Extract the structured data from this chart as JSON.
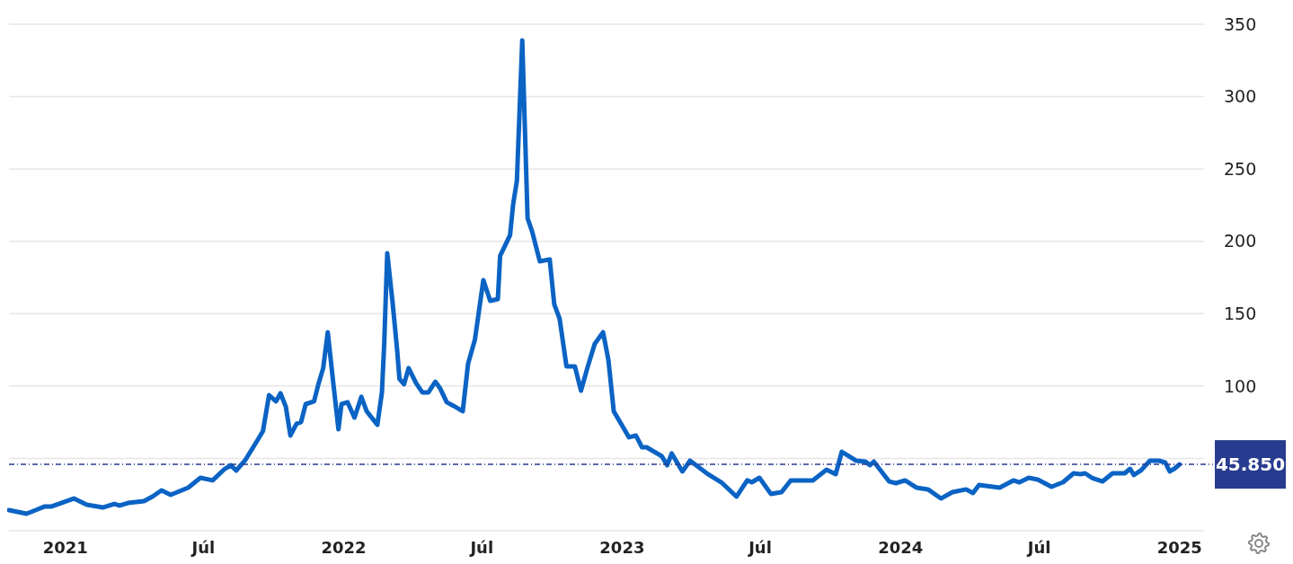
{
  "chart_data": {
    "type": "line",
    "x": [
      "2020-10-19",
      "2020-11-11",
      "2020-11-23",
      "2020-12-05",
      "2020-12-14",
      "2021-01-12",
      "2021-01-29",
      "2021-02-19",
      "2021-03-06",
      "2021-03-13",
      "2021-03-24",
      "2021-04-14",
      "2021-04-25",
      "2021-05-07",
      "2021-05-19",
      "2021-06-11",
      "2021-06-27",
      "2021-07-13",
      "2021-07-29",
      "2021-08-06",
      "2021-08-13",
      "2021-08-25",
      "2021-09-10",
      "2021-09-17",
      "2021-09-25",
      "2021-10-04",
      "2021-10-10",
      "2021-10-17",
      "2021-10-23",
      "2021-10-31",
      "2021-11-06",
      "2021-11-12",
      "2021-11-23",
      "2021-11-29",
      "2021-12-05",
      "2021-12-11",
      "2021-12-17",
      "2021-12-25",
      "2021-12-29",
      "2022-01-06",
      "2022-01-15",
      "2022-01-24",
      "2022-01-31",
      "2022-02-14",
      "2022-02-20",
      "2022-02-23",
      "2022-02-27",
      "2022-03-06",
      "2022-03-12",
      "2022-03-15",
      "2022-03-21",
      "2022-03-27",
      "2022-04-06",
      "2022-04-14",
      "2022-04-22",
      "2022-05-01",
      "2022-05-07",
      "2022-05-16",
      "2022-05-25",
      "2022-06-06",
      "2022-06-13",
      "2022-06-22",
      "2022-07-03",
      "2022-07-12",
      "2022-07-22",
      "2022-07-25",
      "2022-08-07",
      "2022-08-11",
      "2022-08-16",
      "2022-08-23",
      "2022-08-30",
      "2022-09-05",
      "2022-09-15",
      "2022-09-28",
      "2022-10-04",
      "2022-10-11",
      "2022-10-20",
      "2022-10-31",
      "2022-11-08",
      "2022-11-17",
      "2022-11-26",
      "2022-12-07",
      "2022-12-14",
      "2022-12-21",
      "2023-01-10",
      "2023-01-19",
      "2023-01-27",
      "2023-02-02",
      "2023-02-22",
      "2023-03-01",
      "2023-03-07",
      "2023-03-21",
      "2023-03-31",
      "2023-04-22",
      "2023-05-11",
      "2023-05-31",
      "2023-06-14",
      "2023-06-20",
      "2023-06-30",
      "2023-07-15",
      "2023-07-29",
      "2023-08-10",
      "2023-09-08",
      "2023-09-26",
      "2023-10-08",
      "2023-10-16",
      "2023-11-04",
      "2023-11-16",
      "2023-11-22",
      "2023-11-27",
      "2023-12-17",
      "2023-12-26",
      "2024-01-07",
      "2024-01-22",
      "2024-02-06",
      "2024-02-23",
      "2024-03-09",
      "2024-03-27",
      "2024-04-05",
      "2024-04-13",
      "2024-05-10",
      "2024-05-28",
      "2024-06-05",
      "2024-06-17",
      "2024-06-29",
      "2024-07-17",
      "2024-08-01",
      "2024-08-15",
      "2024-08-24",
      "2024-08-30",
      "2024-09-08",
      "2024-09-22",
      "2024-10-05",
      "2024-10-21",
      "2024-10-28",
      "2024-11-02",
      "2024-11-11",
      "2024-11-23",
      "2024-12-05",
      "2024-12-13",
      "2024-12-19",
      "2024-12-25",
      "2025-01-01"
    ],
    "series": [
      {
        "color": "#0b63c4",
        "values": [
          14.3,
          11.8,
          14.3,
          16.8,
          16.8,
          22.3,
          18,
          16.1,
          18.6,
          17.4,
          19.2,
          20.5,
          23.6,
          27.9,
          24.8,
          29.8,
          36.6,
          34.8,
          42.8,
          45.3,
          41.6,
          49,
          62.7,
          68.9,
          93.7,
          89.4,
          95,
          85.7,
          65.8,
          73.9,
          75.1,
          87.5,
          89.4,
          101.8,
          112.4,
          137.2,
          108,
          70.1,
          87.5,
          88.8,
          78.2,
          92.5,
          82.6,
          73.2,
          95.6,
          129,
          191.8,
          157.7,
          124.8,
          104.9,
          101.2,
          112.4,
          101.8,
          95.6,
          95.6,
          103,
          98.7,
          88.8,
          86.3,
          82.6,
          115.5,
          132.2,
          173.2,
          158.9,
          160.1,
          190,
          204.2,
          225.3,
          242,
          338.9,
          216,
          206.7,
          186.2,
          187.5,
          156.4,
          146.5,
          113.6,
          113.6,
          96.8,
          113.6,
          129.1,
          137.2,
          117.9,
          82.6,
          64.6,
          65.8,
          57.7,
          57.7,
          51.5,
          45.3,
          53.4,
          41,
          48.4,
          39.7,
          33.5,
          23.6,
          34.8,
          33.5,
          36.6,
          25.5,
          26.7,
          34.8,
          34.8,
          42.2,
          39.1,
          54.6,
          48.4,
          47.8,
          45.3,
          47.8,
          34.1,
          32.9,
          34.8,
          29.8,
          28.6,
          22.3,
          26.7,
          28.6,
          26.1,
          31.7,
          29.8,
          34.8,
          33.5,
          36.6,
          35.4,
          30.4,
          33.5,
          39.7,
          39.1,
          39.7,
          36.6,
          34.1,
          39.7,
          39.7,
          42.8,
          38.5,
          41.6,
          48.4,
          48.4,
          47.2,
          41,
          42.8,
          45.9
        ]
      }
    ],
    "xlim": [
      "2020-10-19",
      "2025-02-02"
    ],
    "xticks": [
      {
        "value": "2021-01-01",
        "label": "2021"
      },
      {
        "value": "2021-07-01",
        "label": "Júl"
      },
      {
        "value": "2022-01-01",
        "label": "2022"
      },
      {
        "value": "2022-07-01",
        "label": "Júl"
      },
      {
        "value": "2023-01-01",
        "label": "2023"
      },
      {
        "value": "2023-07-01",
        "label": "Júl"
      },
      {
        "value": "2024-01-01",
        "label": "2024"
      },
      {
        "value": "2024-07-01",
        "label": "Júl"
      },
      {
        "value": "2025-01-01",
        "label": "2025"
      }
    ],
    "ylim": [
      0,
      350
    ],
    "yticks": [
      {
        "value": 0,
        "label": null
      },
      {
        "value": 50,
        "label": null
      },
      100,
      150,
      200,
      250,
      300,
      350
    ],
    "grid": "y",
    "ref_lines": [
      {
        "axis": "y",
        "value": 45.85,
        "label": "45.850",
        "color": "#283c8f",
        "line_style": "dashed"
      }
    ]
  }
}
